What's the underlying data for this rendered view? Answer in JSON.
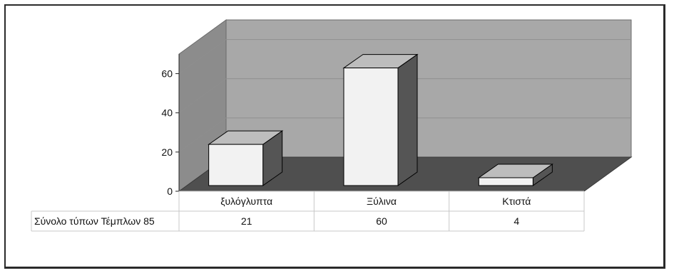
{
  "chart_data": {
    "type": "bar",
    "style": "3d-column-with-data-table",
    "categories": [
      "ξυλόγλυπτα",
      "Ξύλινα",
      "Κτιστά"
    ],
    "series": [
      {
        "name": "Σύνολο τύπων Τέμπλων 85",
        "values": [
          21,
          60,
          4
        ]
      }
    ],
    "y_ticks": [
      "0",
      "20",
      "40",
      "60"
    ],
    "ylim": [
      0,
      70
    ],
    "grid": true,
    "legend": "none",
    "colors": {
      "back_wall": "#a8a8a8",
      "side_wall": "#8c8c8c",
      "floor": "#4f4f4f",
      "bar_front": "#f2f2f2",
      "bar_top": "#bdbdbd",
      "bar_side": "#555555"
    }
  },
  "data_table": {
    "row_label": "Σύνολο τύπων Τέμπλων 85",
    "values": [
      "21",
      "60",
      "4"
    ]
  }
}
